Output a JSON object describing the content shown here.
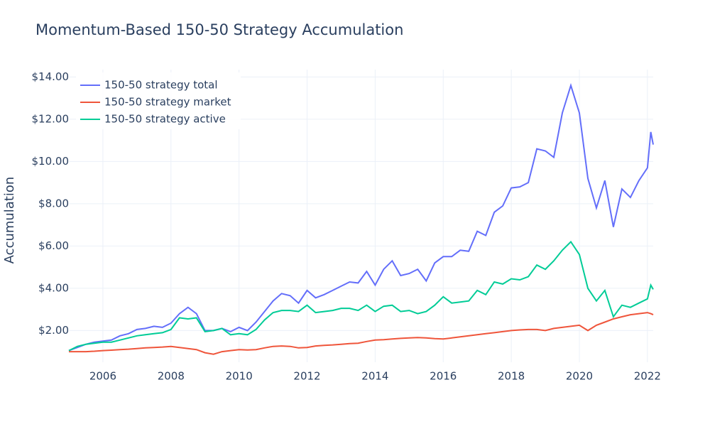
{
  "chart_data": {
    "type": "line",
    "title": "Momentum-Based 150-50 Strategy Accumulation",
    "y_label": "Accumulation",
    "x": [
      2005,
      2005.25,
      2005.5,
      2005.75,
      2006,
      2006.25,
      2006.5,
      2006.75,
      2007,
      2007.25,
      2007.5,
      2007.75,
      2008,
      2008.25,
      2008.5,
      2008.75,
      2009,
      2009.25,
      2009.5,
      2009.75,
      2010,
      2010.25,
      2010.5,
      2010.75,
      2011,
      2011.25,
      2011.5,
      2011.75,
      2012,
      2012.25,
      2012.5,
      2012.75,
      2013,
      2013.25,
      2013.5,
      2013.75,
      2014,
      2014.25,
      2014.5,
      2014.75,
      2015,
      2015.25,
      2015.5,
      2015.75,
      2016,
      2016.25,
      2016.5,
      2016.75,
      2017,
      2017.25,
      2017.5,
      2017.75,
      2018,
      2018.25,
      2018.5,
      2018.75,
      2019,
      2019.25,
      2019.5,
      2019.75,
      2020,
      2020.25,
      2020.5,
      2020.75,
      2021,
      2021.25,
      2021.5,
      2021.75,
      2022,
      2022.1,
      2022.17
    ],
    "series": [
      {
        "name": "150-50 strategy total",
        "color": "#636efa",
        "values": [
          1.05,
          1.2,
          1.35,
          1.45,
          1.5,
          1.55,
          1.75,
          1.85,
          2.05,
          2.1,
          2.2,
          2.15,
          2.35,
          2.8,
          3.1,
          2.8,
          2.0,
          2.0,
          2.1,
          1.95,
          2.15,
          2.0,
          2.4,
          2.9,
          3.4,
          3.75,
          3.65,
          3.3,
          3.9,
          3.55,
          3.7,
          3.9,
          4.1,
          4.3,
          4.25,
          4.8,
          4.15,
          4.9,
          5.3,
          4.6,
          4.7,
          4.9,
          4.35,
          5.2,
          5.5,
          5.5,
          5.8,
          5.75,
          6.7,
          6.5,
          7.6,
          7.9,
          8.75,
          8.8,
          9.0,
          10.6,
          10.5,
          10.2,
          12.3,
          13.6,
          12.3,
          9.2,
          7.8,
          9.1,
          6.9,
          8.7,
          8.3,
          9.1,
          9.7,
          11.4,
          10.8
        ]
      },
      {
        "name": "150-50 strategy market",
        "color": "#ef553b",
        "values": [
          1.0,
          1.0,
          1.0,
          1.02,
          1.05,
          1.07,
          1.1,
          1.12,
          1.15,
          1.18,
          1.2,
          1.22,
          1.25,
          1.2,
          1.15,
          1.1,
          0.95,
          0.88,
          1.0,
          1.05,
          1.1,
          1.08,
          1.1,
          1.18,
          1.25,
          1.27,
          1.25,
          1.18,
          1.2,
          1.27,
          1.3,
          1.32,
          1.35,
          1.38,
          1.4,
          1.48,
          1.55,
          1.57,
          1.6,
          1.63,
          1.65,
          1.67,
          1.65,
          1.62,
          1.6,
          1.65,
          1.7,
          1.75,
          1.8,
          1.85,
          1.9,
          1.95,
          2.0,
          2.03,
          2.05,
          2.05,
          2.0,
          2.1,
          2.15,
          2.2,
          2.25,
          2.0,
          2.25,
          2.4,
          2.55,
          2.65,
          2.75,
          2.8,
          2.85,
          2.8,
          2.75
        ]
      },
      {
        "name": "150-50 strategy active",
        "color": "#00cc96",
        "values": [
          1.05,
          1.25,
          1.35,
          1.4,
          1.45,
          1.45,
          1.55,
          1.65,
          1.75,
          1.8,
          1.85,
          1.9,
          2.05,
          2.6,
          2.55,
          2.6,
          1.95,
          2.0,
          2.1,
          1.8,
          1.85,
          1.8,
          2.05,
          2.5,
          2.85,
          2.95,
          2.95,
          2.9,
          3.2,
          2.85,
          2.9,
          2.95,
          3.05,
          3.05,
          2.95,
          3.2,
          2.9,
          3.15,
          3.2,
          2.9,
          2.95,
          2.8,
          2.9,
          3.2,
          3.6,
          3.3,
          3.35,
          3.4,
          3.9,
          3.7,
          4.3,
          4.2,
          4.45,
          4.4,
          4.55,
          5.1,
          4.9,
          5.3,
          5.8,
          6.2,
          5.6,
          4.0,
          3.4,
          3.9,
          2.65,
          3.2,
          3.1,
          3.3,
          3.5,
          4.15,
          3.95
        ]
      }
    ],
    "xlim": [
      2005,
      2022.17
    ],
    "xticks": [
      2006,
      2008,
      2010,
      2012,
      2014,
      2016,
      2018,
      2020,
      2022
    ],
    "ylim": [
      0.5,
      14.35
    ],
    "yticks": [
      {
        "value": 2,
        "label": "$2.00"
      },
      {
        "value": 4,
        "label": "$4.00"
      },
      {
        "value": 6,
        "label": "$6.00"
      },
      {
        "value": 8,
        "label": "$8.00"
      },
      {
        "value": 10,
        "label": "$10.00"
      },
      {
        "value": 12,
        "label": "$12.00"
      },
      {
        "value": 14,
        "label": "$14.00"
      }
    ],
    "grid": true,
    "legend": "top-left"
  }
}
